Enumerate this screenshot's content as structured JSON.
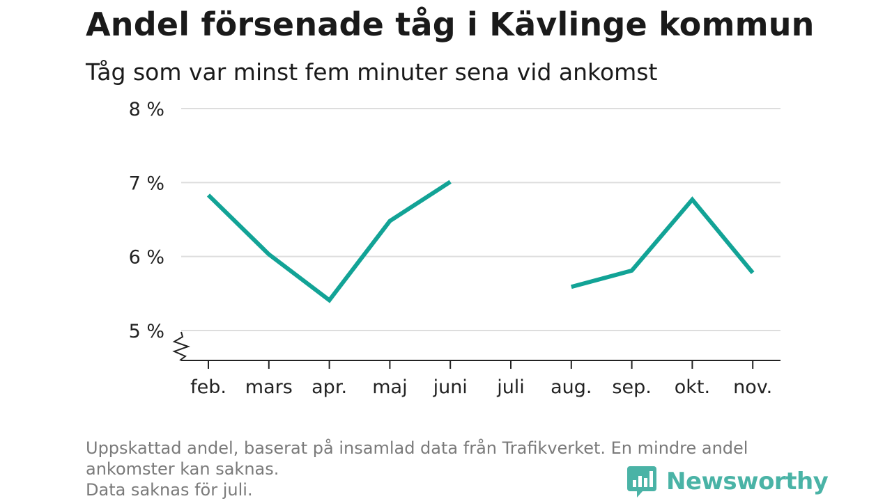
{
  "title": "Andel försenade tåg i Kävlinge kommun",
  "subtitle": "Tåg som var minst fem minuter sena vid ankomst",
  "footnote": {
    "line1": "Uppskattad andel, baserat på insamlad data från Trafikverket. En mindre andel",
    "line2": "ankomster kan saknas.",
    "line3": "Data saknas för juli."
  },
  "brand": {
    "name": "Newsworthy",
    "icon": "newsworthy-logo-icon",
    "color": "#4ab3a6"
  },
  "colors": {
    "line": "#12a396",
    "grid": "#dddddd",
    "axis": "#222222"
  },
  "chart_data": {
    "type": "line",
    "title": "Andel försenade tåg i Kävlinge kommun",
    "subtitle": "Tåg som var minst fem minuter sena vid ankomst",
    "categories": [
      "feb.",
      "mars",
      "apr.",
      "maj",
      "juni",
      "juli",
      "aug.",
      "sep.",
      "okt.",
      "nov."
    ],
    "series": [
      {
        "values": [
          6.83,
          6.03,
          5.41,
          6.48,
          7.01,
          null,
          5.59,
          5.81,
          6.77,
          5.78
        ]
      }
    ],
    "y_ticks": [
      5,
      6,
      7,
      8
    ],
    "y_tick_labels": [
      "5 %",
      "6 %",
      "7 %",
      "8 %"
    ],
    "ylim": [
      5,
      8
    ],
    "broken_y_axis": true,
    "grid": "horizontal",
    "missing": [
      "juli"
    ]
  }
}
